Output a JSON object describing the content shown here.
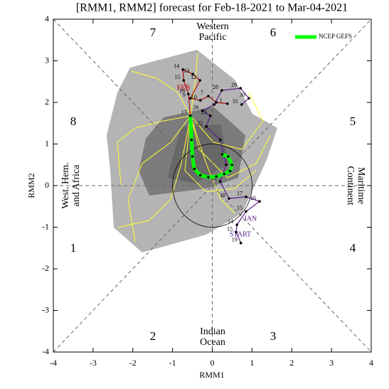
{
  "chart_data": {
    "type": "line",
    "title": "[RMM1, RMM2] forecast for Feb-18-2021 to Mar-04-2021",
    "xlabel": "RMM1",
    "ylabel": "RMM2",
    "xlim": [
      -4,
      4
    ],
    "ylim": [
      -4,
      4
    ],
    "xticks": [
      -4,
      -3,
      -2,
      -1,
      0,
      1,
      2,
      3,
      4
    ],
    "yticks": [
      -4,
      -3,
      -2,
      -1,
      0,
      1,
      2,
      3,
      4
    ],
    "phase_labels": [
      "1",
      "2",
      "3",
      "4",
      "5",
      "6",
      "7",
      "8"
    ],
    "region_labels": {
      "top": [
        "Western",
        "Pacific"
      ],
      "bottom": [
        "Indian",
        "Ocean"
      ],
      "left": [
        "West. Hem.",
        "and Africa"
      ],
      "right": [
        "Maritime",
        "Continent"
      ]
    },
    "annotations": [
      "JAN",
      "START",
      "FEB"
    ],
    "legend": "top-right",
    "series": [
      {
        "color": "#5a1a8a",
        "x": [
          0.72,
          0.6,
          0.62,
          0.85,
          1.19,
          0.85,
          0.42,
          0.2,
          0.35,
          0.2,
          -0.15,
          -0.05,
          -0.25,
          0.05,
          0.24,
          0.71,
          0.92,
          0.74
        ],
        "values": [
          -1.38,
          -1.12,
          -0.94,
          -0.62,
          -0.38,
          -0.27,
          -0.31,
          0.1,
          0.5,
          1.1,
          1.42,
          1.68,
          1.8,
          1.95,
          2.29,
          2.34,
          2.1,
          1.95
        ],
        "point_labels": [
          "19",
          "15",
          "14",
          "15",
          "16",
          "17",
          "18",
          "19",
          null,
          null,
          "22",
          "23",
          "26",
          null,
          "28",
          "29",
          "30",
          "31"
        ]
      },
      {
        "color": "#b01010",
        "x": [
          0.38,
          0.1,
          -0.1,
          -0.3,
          -0.55,
          -0.31,
          -0.49,
          -0.74,
          -0.72,
          -0.6,
          -0.55
        ],
        "values": [
          1.97,
          2.0,
          2.15,
          2.05,
          2.1,
          2.53,
          2.68,
          2.79,
          2.53,
          2.2,
          1.68
        ],
        "point_labels": [
          "1",
          null,
          "7",
          "10",
          "9",
          "12",
          "13",
          "14",
          "15",
          "16",
          "17"
        ]
      },
      {
        "name": "NCEP GEFS",
        "color": "#00ff00",
        "x": [
          -0.55,
          -0.52,
          -0.5,
          -0.45,
          -0.3,
          -0.1,
          0.1,
          0.3,
          0.45,
          0.5,
          0.4,
          0.25
        ],
        "values": [
          1.68,
          1.1,
          0.7,
          0.4,
          0.25,
          0.2,
          0.22,
          0.28,
          0.35,
          0.5,
          0.7,
          0.75
        ]
      }
    ]
  }
}
